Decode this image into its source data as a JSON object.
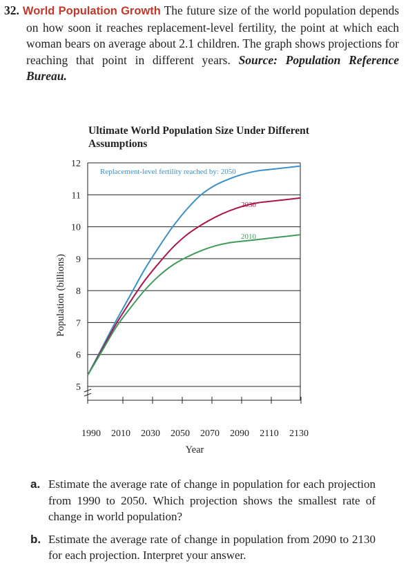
{
  "problem": {
    "number": "32.",
    "topic": "World Population Growth",
    "text": "The future size of the world population depends on how soon it reaches replacement-level fertility, the point at which each woman bears on average about 2.1 children. The graph shows projections for reaching that point in different years.",
    "source": "Source: Population Reference Bureau."
  },
  "chart_data": {
    "type": "line",
    "title": "Ultimate World Population Size Under Different Assumptions",
    "xlabel": "Year",
    "ylabel": "Population (billions)",
    "xlim": [
      1980,
      2130
    ],
    "ylim": [
      5,
      12
    ],
    "x_ticks": [
      1990,
      2010,
      2030,
      2050,
      2070,
      2090,
      2110,
      2130
    ],
    "y_ticks": [
      5,
      6,
      7,
      8,
      9,
      10,
      11,
      12
    ],
    "grid": "horizontal",
    "annotation": "Replacement-level fertility reached by:",
    "series": [
      {
        "name": "2050",
        "color": "#3b8fc9",
        "x": [
          1980,
          1990,
          2000,
          2010,
          2020,
          2030,
          2040,
          2050,
          2060,
          2070,
          2080,
          2090,
          2100,
          2110,
          2120,
          2130
        ],
        "y": [
          5.35,
          6.2,
          7.05,
          7.85,
          8.65,
          9.35,
          10.0,
          10.55,
          11.0,
          11.3,
          11.5,
          11.65,
          11.75,
          11.8,
          11.85,
          11.9
        ]
      },
      {
        "name": "2030",
        "color": "#a8174a",
        "x": [
          1980,
          1990,
          2000,
          2010,
          2020,
          2030,
          2040,
          2050,
          2060,
          2070,
          2080,
          2090,
          2100,
          2110,
          2120,
          2130
        ],
        "y": [
          5.35,
          6.15,
          6.95,
          7.65,
          8.3,
          8.85,
          9.35,
          9.75,
          10.05,
          10.3,
          10.5,
          10.65,
          10.75,
          10.8,
          10.85,
          10.9
        ]
      },
      {
        "name": "2010",
        "color": "#3f9a5a",
        "x": [
          1980,
          1990,
          2000,
          2010,
          2020,
          2030,
          2040,
          2050,
          2060,
          2070,
          2080,
          2090,
          2100,
          2110,
          2120,
          2130
        ],
        "y": [
          5.35,
          6.1,
          6.85,
          7.45,
          8.0,
          8.45,
          8.8,
          9.05,
          9.25,
          9.4,
          9.5,
          9.55,
          9.6,
          9.65,
          9.7,
          9.75
        ]
      }
    ]
  },
  "questions": [
    {
      "letter": "a.",
      "text": "Estimate the average rate of change in population for each projection from 1990 to 2050. Which projection shows the smallest rate of change in world population?"
    },
    {
      "letter": "b.",
      "text": "Estimate the average rate of change in population from 2090 to 2130 for each projection. Interpret your answer."
    }
  ]
}
